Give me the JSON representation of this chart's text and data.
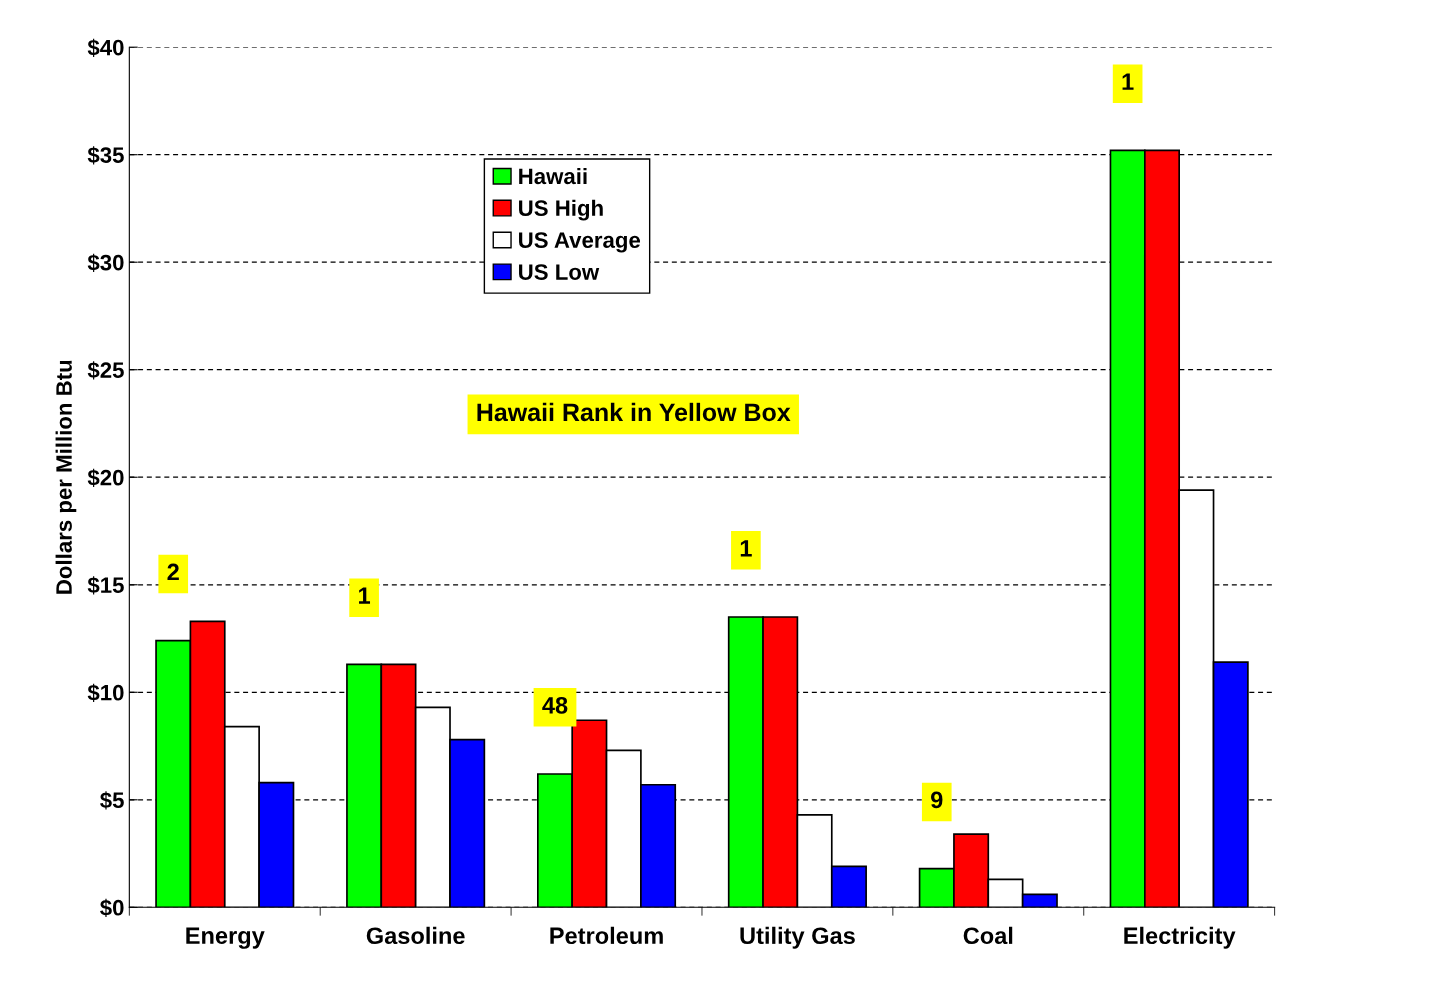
{
  "chart_data": {
    "type": "bar",
    "ylabel": "Dollars per Million Btu",
    "categories": [
      "Energy",
      "Gasoline",
      "Petroleum",
      "Utility Gas",
      "Coal",
      "Electricity"
    ],
    "series": [
      {
        "name": "Hawaii",
        "color": "#00ff00",
        "values": [
          12.4,
          11.3,
          6.2,
          13.5,
          1.8,
          35.2
        ]
      },
      {
        "name": "US High",
        "color": "#ff0000",
        "values": [
          13.3,
          11.3,
          8.7,
          13.5,
          3.4,
          35.2
        ]
      },
      {
        "name": "US Average",
        "color": "#ffffff",
        "values": [
          8.4,
          9.3,
          7.3,
          4.3,
          1.3,
          19.4
        ]
      },
      {
        "name": "US Low",
        "color": "#0000ff",
        "values": [
          5.8,
          7.8,
          5.7,
          1.9,
          0.6,
          11.4
        ]
      }
    ],
    "ylim": [
      0,
      40
    ],
    "yticks": [
      {
        "value": 0,
        "label": "$0"
      },
      {
        "value": 5,
        "label": "$5"
      },
      {
        "value": 10,
        "label": "$10"
      },
      {
        "value": 15,
        "label": "$15"
      },
      {
        "value": 20,
        "label": "$20"
      },
      {
        "value": 25,
        "label": "$25"
      },
      {
        "value": 30,
        "label": "$30"
      },
      {
        "value": 35,
        "label": "$35"
      },
      {
        "value": 40,
        "label": "$40"
      }
    ],
    "grid": "y",
    "legend": "top left",
    "annotations": [
      "2",
      "1",
      "48",
      "1",
      "9",
      "1",
      "Hawaii Rank in Yellow Box"
    ]
  }
}
